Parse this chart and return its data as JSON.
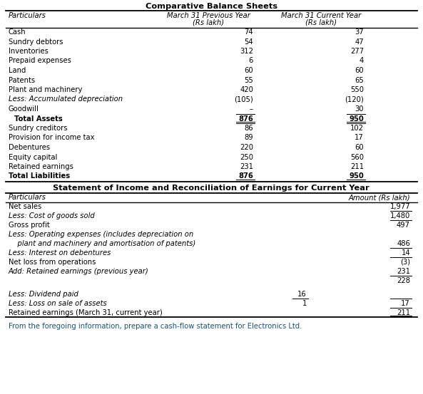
{
  "title1": "Comparative Balance Sheets",
  "title2": "Statement of Income and Reconciliation of Earnings for Current Year",
  "footer": "From the foregoing information, prepare a cash-flow statement for Electronics Ltd.",
  "bs_header_col1": "Particulars",
  "bs_header_col2_line1": "March 31 Previous Year",
  "bs_header_col2_line2": "(Rs lakh)",
  "bs_header_col3_line1": "March 31 Current Year",
  "bs_header_col3_line2": "(Rs lakh)",
  "bs_rows": [
    [
      "Cash",
      "74",
      "37"
    ],
    [
      "Sundry debtors",
      "54",
      "47"
    ],
    [
      "Inventories",
      "312",
      "277"
    ],
    [
      "Prepaid expenses",
      "6",
      "4"
    ],
    [
      "Land",
      "60",
      "60"
    ],
    [
      "Patents",
      "55",
      "65"
    ],
    [
      "Plant and machinery",
      "420",
      "550"
    ],
    [
      "Less: Accumulated depreciation",
      "(105)",
      "(120)"
    ],
    [
      "Goodwill",
      "–",
      "30"
    ],
    [
      "Total Assets",
      "876",
      "950"
    ],
    [
      "Sundry creditors",
      "86",
      "102"
    ],
    [
      "Provision for income tax",
      "89",
      "17"
    ],
    [
      "Debentures",
      "220",
      "60"
    ],
    [
      "Equity capital",
      "250",
      "560"
    ],
    [
      "Retained earnings",
      "231",
      "211"
    ],
    [
      "Total Liabilities",
      "876",
      "950"
    ]
  ],
  "bs_italic_rows": [
    7
  ],
  "bs_bold_rows": [
    9,
    15
  ],
  "bs_single_under_rows": [
    8,
    9,
    15
  ],
  "bs_double_under_rows": [
    9,
    15
  ],
  "bs_total_rows": [
    9,
    15
  ],
  "is_header_col1": "Particulars",
  "is_header_col3": "Amount (Rs lakh)",
  "is_rows": [
    [
      "Net sales",
      "",
      "1,977",
      false,
      false
    ],
    [
      "Less: Cost of goods sold",
      "",
      "1,480",
      true,
      false
    ],
    [
      "Gross profit",
      "",
      "497",
      false,
      false
    ],
    [
      "Less: Operating expenses (includes depreciation on",
      "",
      "",
      true,
      false
    ],
    [
      "    plant and machinery and amortisation of patents)",
      "",
      "486",
      true,
      false
    ],
    [
      "Less: Interest on debentures",
      "",
      "14",
      true,
      false
    ],
    [
      "Net loss from operations",
      "",
      "(3)",
      false,
      false
    ],
    [
      "Add: Retained earnings (previous year)",
      "",
      "231",
      true,
      false
    ],
    [
      "",
      "",
      "228",
      false,
      false
    ],
    [
      "Less: Dividend paid",
      "16",
      "",
      true,
      false
    ],
    [
      "Less: Loss on sale of assets",
      "1",
      "17",
      true,
      false
    ],
    [
      "Retained earnings (March 31, current year)",
      "",
      "211",
      false,
      false
    ]
  ],
  "is_underline_after": [
    0,
    1,
    4,
    5,
    7,
    9,
    10,
    11
  ],
  "is_col2_underline_after": [
    9
  ],
  "is_double_under_rows": [
    11
  ],
  "is_blank_before": [
    9
  ],
  "bg_color": "#ffffff",
  "text_color": "#000000",
  "footer_color": "#1a5276"
}
